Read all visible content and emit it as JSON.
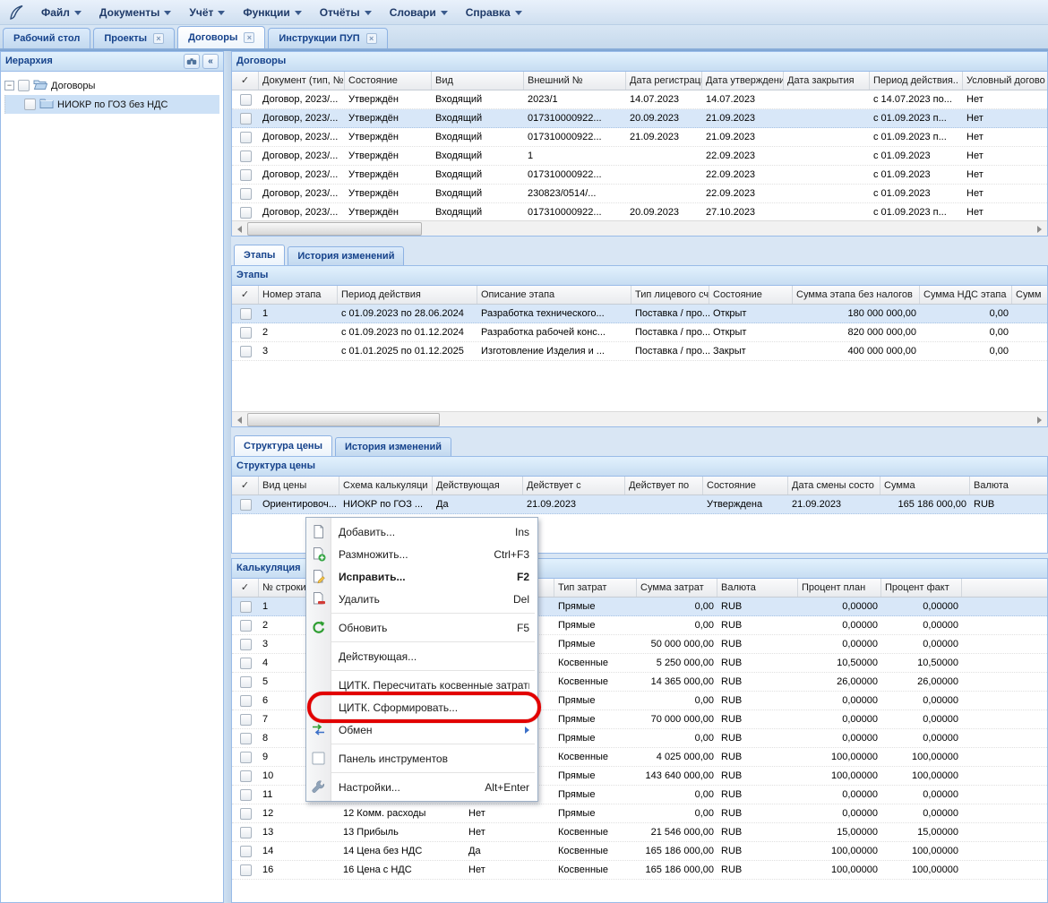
{
  "colors": {
    "accent": "#15428b",
    "selection": "#d8e7f8",
    "annotation_red": "#e20000",
    "panel_border": "#99bbe8"
  },
  "menubar": {
    "items": [
      {
        "label": "Файл"
      },
      {
        "label": "Документы"
      },
      {
        "label": "Учёт"
      },
      {
        "label": "Функции"
      },
      {
        "label": "Отчёты"
      },
      {
        "label": "Словари"
      },
      {
        "label": "Справка"
      }
    ]
  },
  "tabs": [
    {
      "label": "Рабочий стол",
      "closable": false,
      "active": false
    },
    {
      "label": "Проекты",
      "closable": true,
      "active": false
    },
    {
      "label": "Договоры",
      "closable": true,
      "active": true
    },
    {
      "label": "Инструкции ПУП",
      "closable": true,
      "active": false
    }
  ],
  "sidebar": {
    "title": "Иерархия",
    "tree": [
      {
        "label": "Договоры",
        "level": 0,
        "expanded": true,
        "selected": false
      },
      {
        "label": "НИОКР по ГОЗ без НДС",
        "level": 1,
        "expanded": false,
        "selected": true
      }
    ]
  },
  "contracts": {
    "title": "Договоры",
    "headers": [
      "Документ (тип, №",
      "Состояние",
      "Вид",
      "Внешний №",
      "Дата регистрации.",
      "Дата утверждения",
      "Дата закрытия",
      "Период действия..",
      "Условный догово"
    ],
    "selected_index": 1,
    "rows": [
      [
        "Договор, 2023/...",
        "Утверждён",
        "Входящий",
        "2023/1",
        "14.07.2023",
        "14.07.2023",
        "",
        "с 14.07.2023 по...",
        "Нет"
      ],
      [
        "Договор, 2023/...",
        "Утверждён",
        "Входящий",
        "017310000922...",
        "20.09.2023",
        "21.09.2023",
        "",
        "с 01.09.2023 п...",
        "Нет"
      ],
      [
        "Договор, 2023/...",
        "Утверждён",
        "Входящий",
        "017310000922...",
        "21.09.2023",
        "21.09.2023",
        "",
        "с 01.09.2023 п...",
        "Нет"
      ],
      [
        "Договор, 2023/...",
        "Утверждён",
        "Входящий",
        "1",
        "",
        "22.09.2023",
        "",
        "с 01.09.2023",
        "Нет"
      ],
      [
        "Договор, 2023/...",
        "Утверждён",
        "Входящий",
        "017310000922...",
        "",
        "22.09.2023",
        "",
        "с 01.09.2023",
        "Нет"
      ],
      [
        "Договор, 2023/...",
        "Утверждён",
        "Входящий",
        "230823/0514/...",
        "",
        "22.09.2023",
        "",
        "с 01.09.2023",
        "Нет"
      ],
      [
        "Договор, 2023/...",
        "Утверждён",
        "Входящий",
        "017310000922...",
        "20.09.2023",
        "27.10.2023",
        "",
        "с 01.09.2023 п...",
        "Нет"
      ]
    ]
  },
  "stages": {
    "tabs": [
      "Этапы",
      "История изменений"
    ],
    "title": "Этапы",
    "headers": [
      "Номер этапа",
      "Период действия",
      "Описание этапа",
      "Тип лицевого счёт",
      "Состояние",
      "Сумма этапа без налогов",
      "Сумма НДС этапа",
      "Сумм"
    ],
    "selected_index": 0,
    "rows": [
      [
        "1",
        "с 01.09.2023 по 28.06.2024",
        "Разработка технического...",
        "Поставка / про...",
        "Открыт",
        "180 000 000,00",
        "0,00",
        ""
      ],
      [
        "2",
        "с 01.09.2023 по 01.12.2024",
        "Разработка рабочей конс...",
        "Поставка / про...",
        "Открыт",
        "820 000 000,00",
        "0,00",
        ""
      ],
      [
        "3",
        "с 01.01.2025 по 01.12.2025",
        "Изготовление Изделия и ...",
        "Поставка / про...",
        "Закрыт",
        "400 000 000,00",
        "0,00",
        ""
      ]
    ]
  },
  "price": {
    "tabs": [
      "Структура цены",
      "История изменений"
    ],
    "title": "Структура цены",
    "headers": [
      "Вид цены",
      "Схема калькуляци",
      "Действующая",
      "Действует с",
      "Действует по",
      "Состояние",
      "Дата смены состо",
      "Сумма",
      "Валюта"
    ],
    "selected_index": 0,
    "rows": [
      [
        "Ориентировоч...",
        "НИОКР по ГОЗ ...",
        "Да",
        "21.09.2023",
        "",
        "Утверждена",
        "21.09.2023",
        "165 186 000,00",
        "RUB"
      ]
    ]
  },
  "calc": {
    "title": "Калькуляция",
    "headers": [
      "№ строки",
      "",
      "",
      "Тип затрат",
      "Сумма затрат",
      "Валюта",
      "Процент план",
      "Процент факт",
      ""
    ],
    "selected_index": 0,
    "rows": [
      [
        "1",
        "",
        "",
        "Прямые",
        "0,00",
        "RUB",
        "0,00000",
        "0,00000",
        ""
      ],
      [
        "2",
        "",
        "",
        "Прямые",
        "0,00",
        "RUB",
        "0,00000",
        "0,00000",
        ""
      ],
      [
        "3",
        "",
        "",
        "Прямые",
        "50 000 000,00",
        "RUB",
        "0,00000",
        "0,00000",
        ""
      ],
      [
        "4",
        "",
        "",
        "Косвенные",
        "5 250 000,00",
        "RUB",
        "10,50000",
        "10,50000",
        ""
      ],
      [
        "5",
        "",
        "",
        "Косвенные",
        "14 365 000,00",
        "RUB",
        "26,00000",
        "26,00000",
        ""
      ],
      [
        "6",
        "",
        "",
        "Прямые",
        "0,00",
        "RUB",
        "0,00000",
        "0,00000",
        ""
      ],
      [
        "7",
        "",
        "",
        "Прямые",
        "70 000 000,00",
        "RUB",
        "0,00000",
        "0,00000",
        ""
      ],
      [
        "8",
        "",
        "",
        "Прямые",
        "0,00",
        "RUB",
        "0,00000",
        "0,00000",
        ""
      ],
      [
        "9",
        "",
        "",
        "Косвенные",
        "4 025 000,00",
        "RUB",
        "100,00000",
        "100,00000",
        ""
      ],
      [
        "10",
        "",
        "",
        "Прямые",
        "143 640 000,00",
        "RUB",
        "100,00000",
        "100,00000",
        ""
      ],
      [
        "11",
        "",
        "",
        "Прямые",
        "0,00",
        "RUB",
        "0,00000",
        "0,00000",
        ""
      ],
      [
        "12",
        "12 Комм. расходы",
        "Нет",
        "Прямые",
        "0,00",
        "RUB",
        "0,00000",
        "0,00000",
        ""
      ],
      [
        "13",
        "13 Прибыль",
        "Нет",
        "Косвенные",
        "21 546 000,00",
        "RUB",
        "15,00000",
        "15,00000",
        ""
      ],
      [
        "14",
        "14 Цена без НДС",
        "Да",
        "Косвенные",
        "165 186 000,00",
        "RUB",
        "100,00000",
        "100,00000",
        ""
      ],
      [
        "16",
        "16 Цена с НДС",
        "Нет",
        "Косвенные",
        "165 186 000,00",
        "RUB",
        "100,00000",
        "100,00000",
        ""
      ]
    ]
  },
  "context_menu": {
    "items": [
      {
        "label": "Добавить...",
        "shortcut": "Ins",
        "icon": "doc-add-icon"
      },
      {
        "label": "Размножить...",
        "shortcut": "Ctrl+F3",
        "icon": "doc-copy-icon"
      },
      {
        "label": "Исправить...",
        "shortcut": "F2",
        "icon": "doc-edit-icon",
        "bold": true
      },
      {
        "label": "Удалить",
        "shortcut": "Del",
        "icon": "doc-delete-icon",
        "sep_after": true
      },
      {
        "label": "Обновить",
        "shortcut": "F5",
        "icon": "refresh-icon",
        "sep_after": true
      },
      {
        "label": "Действующая...",
        "sep_after": true
      },
      {
        "label": "ЦИТК. Пересчитать косвенные затраты..."
      },
      {
        "label": "ЦИТК. Сформировать...",
        "annotated": true
      },
      {
        "label": "Обмен",
        "icon": "exchange-icon",
        "submenu": true,
        "sep_after": true
      },
      {
        "label": "Панель инструментов",
        "icon": "checkbox-icon",
        "sep_after": true
      },
      {
        "label": "Настройки...",
        "shortcut": "Alt+Enter",
        "icon": "wrench-icon"
      }
    ]
  }
}
